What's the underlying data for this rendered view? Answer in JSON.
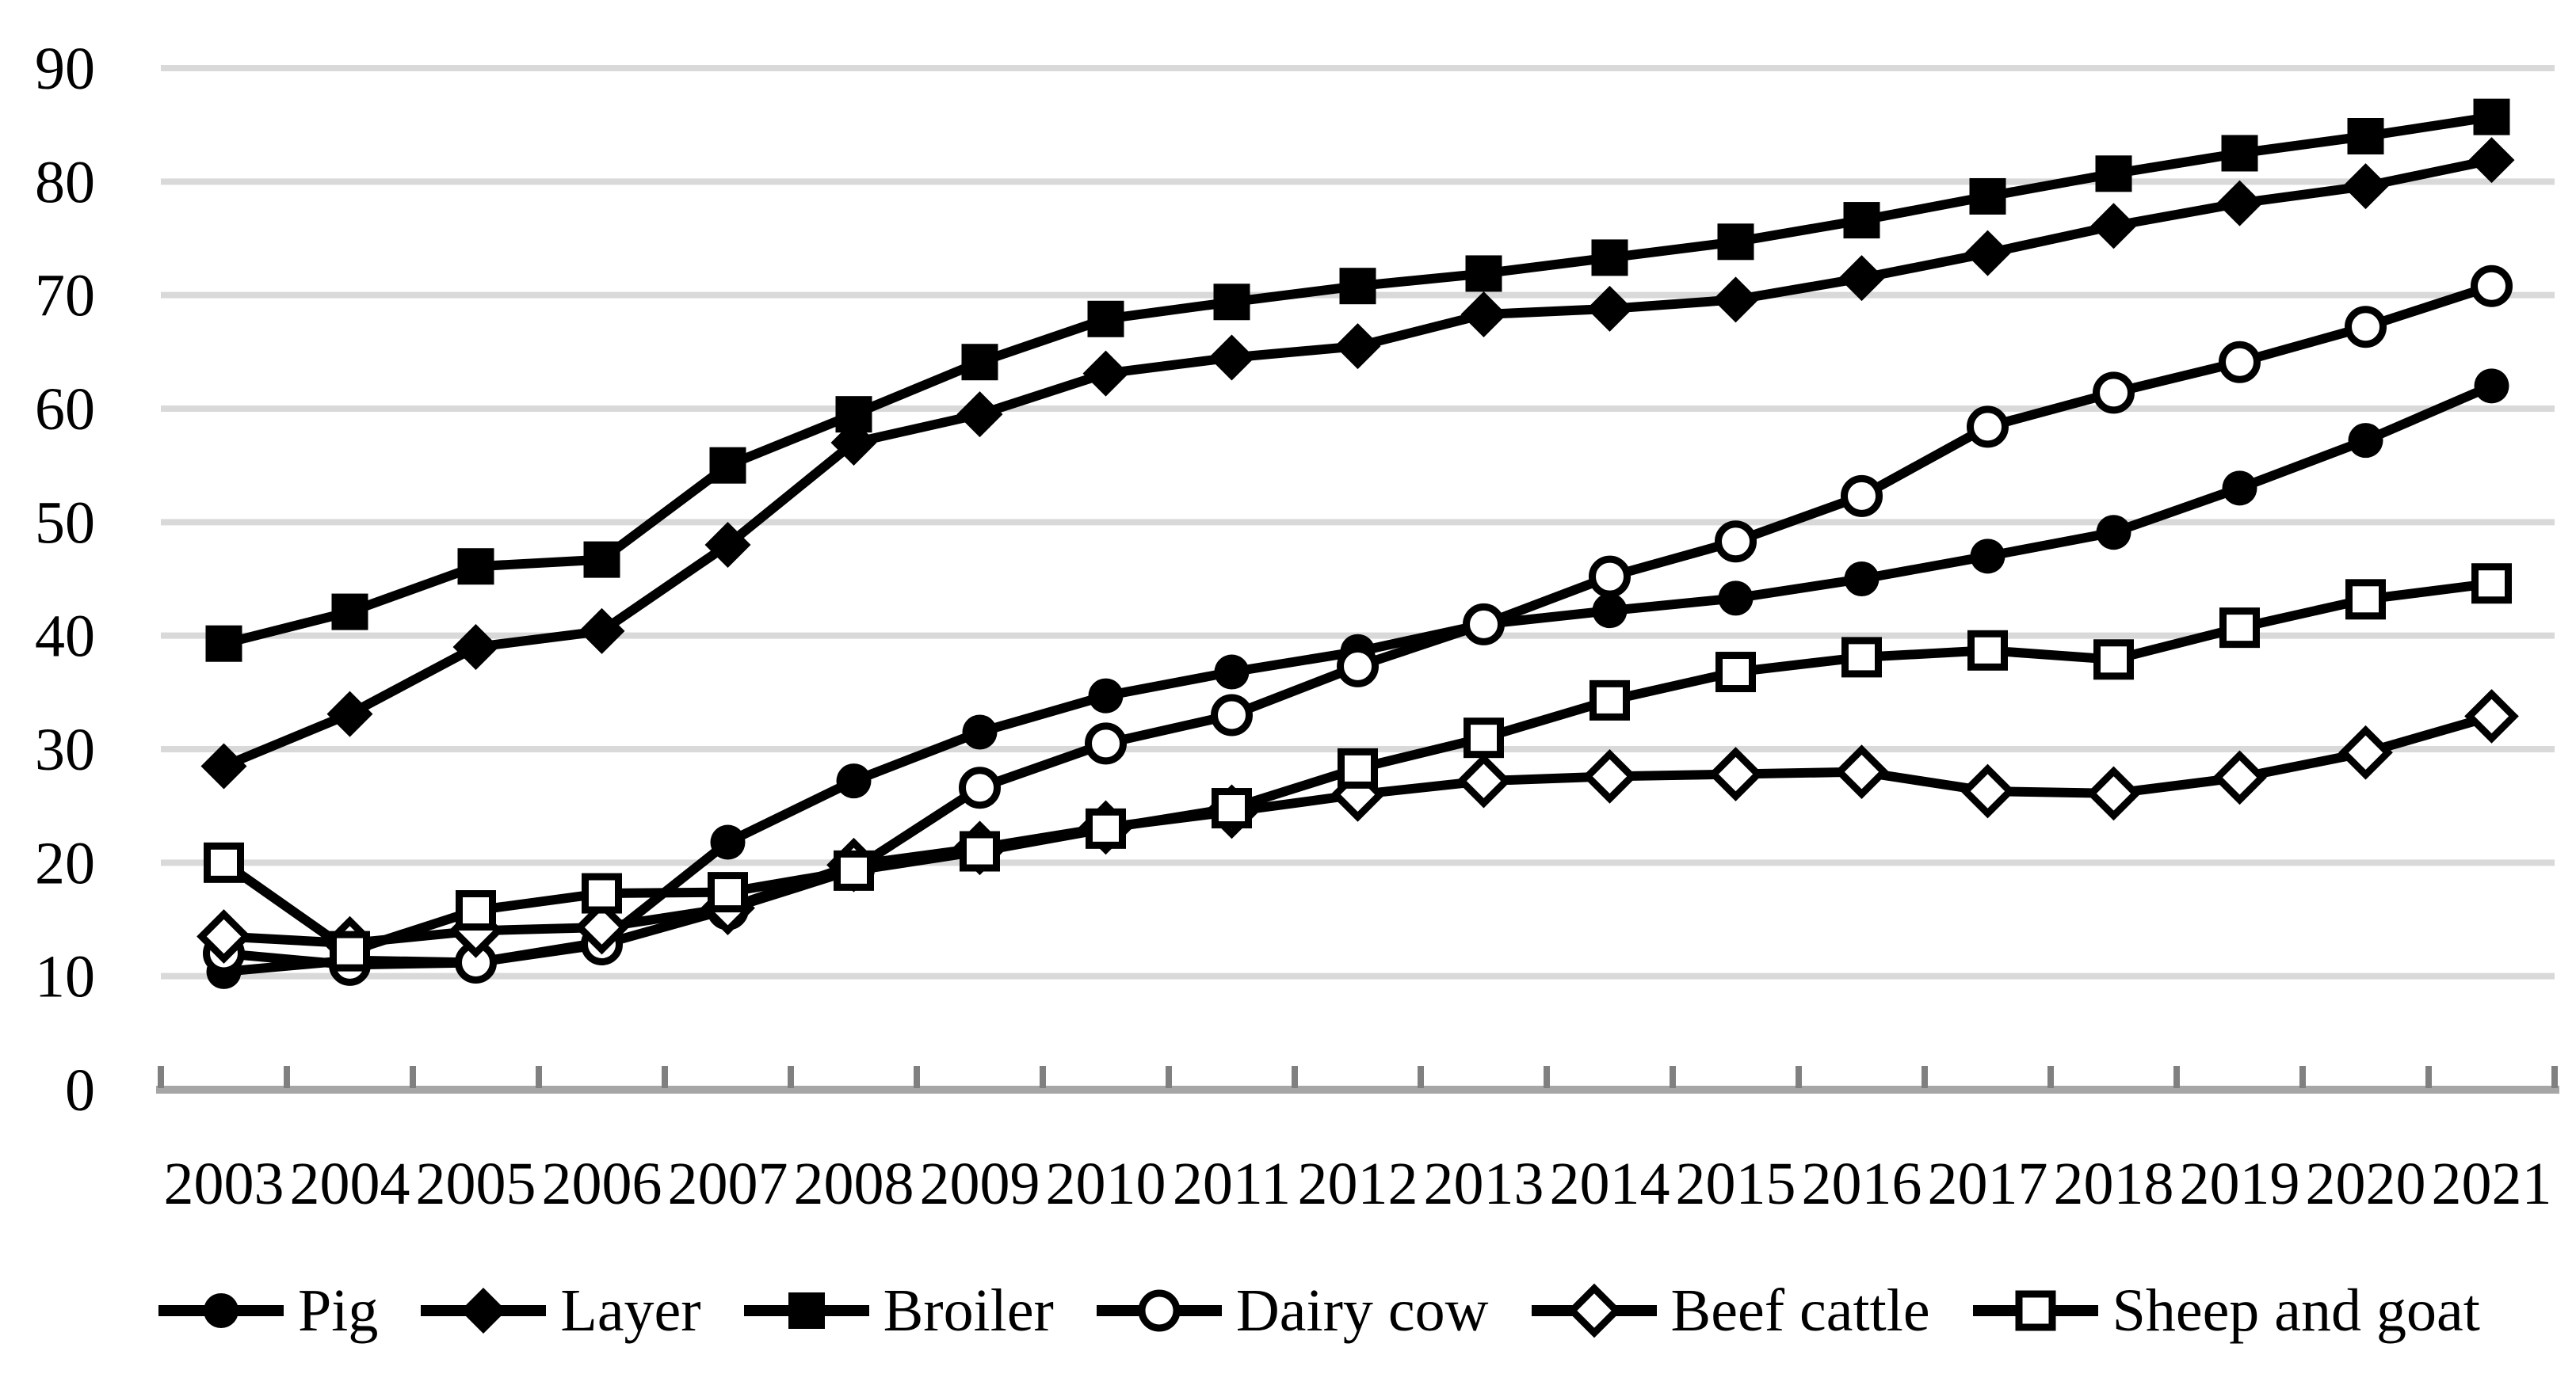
{
  "chart_data": {
    "type": "line",
    "title": "",
    "xlabel": "",
    "ylabel": "",
    "xticks": [
      "2003",
      "2004",
      "2005",
      "2006",
      "2007",
      "2008",
      "2009",
      "2010",
      "2011",
      "2012",
      "2013",
      "2014",
      "2015",
      "2016",
      "2017",
      "2018",
      "2019",
      "2020",
      "2021"
    ],
    "yticks": [
      "0",
      "10",
      "20",
      "30",
      "40",
      "50",
      "60",
      "70",
      "80",
      "90"
    ],
    "ylim": [
      0,
      90
    ],
    "ytick_step": 10,
    "grid": "horizontal",
    "legend_position": "bottom",
    "series": [
      {
        "name": "Pig",
        "marker": "circle",
        "fill": "filled",
        "values": [
          10.4,
          11.4,
          11.2,
          13.0,
          21.8,
          27.2,
          31.5,
          34.7,
          36.8,
          38.6,
          41.0,
          42.2,
          43.3,
          45.0,
          47.0,
          49.1,
          53.0,
          57.2,
          62.0
        ]
      },
      {
        "name": "Layer",
        "marker": "diamond",
        "fill": "filled",
        "values": [
          28.5,
          33.1,
          39.0,
          40.4,
          48.0,
          57.0,
          59.5,
          63.1,
          64.5,
          65.5,
          68.3,
          68.8,
          69.6,
          71.5,
          73.7,
          76.1,
          78.1,
          79.6,
          81.9
        ]
      },
      {
        "name": "Broiler",
        "marker": "square",
        "fill": "filled",
        "values": [
          39.3,
          42.1,
          46.1,
          46.7,
          55.0,
          59.5,
          64.1,
          67.9,
          69.4,
          70.8,
          71.9,
          73.3,
          74.7,
          76.6,
          78.7,
          80.7,
          82.5,
          84.0,
          85.7
        ]
      },
      {
        "name": "Dairy cow",
        "marker": "circle",
        "fill": "open",
        "values": [
          12.0,
          11.0,
          11.2,
          12.8,
          15.9,
          19.4,
          26.6,
          30.5,
          33.0,
          37.3,
          41.0,
          45.2,
          48.3,
          52.3,
          58.4,
          61.4,
          64.1,
          67.2,
          70.8
        ]
      },
      {
        "name": "Beef cattle",
        "marker": "diamond",
        "fill": "open",
        "values": [
          13.5,
          12.9,
          14.0,
          14.3,
          16.0,
          19.8,
          21.3,
          23.1,
          24.5,
          26.0,
          27.2,
          27.6,
          27.8,
          28.0,
          26.3,
          26.1,
          27.5,
          29.7,
          32.9
        ]
      },
      {
        "name": "Sheep and goat",
        "marker": "square",
        "fill": "open",
        "values": [
          20.0,
          12.2,
          15.8,
          17.3,
          17.4,
          19.3,
          21.0,
          23.0,
          24.8,
          28.3,
          31.0,
          34.3,
          36.8,
          38.1,
          38.7,
          37.9,
          40.7,
          43.2,
          44.6
        ]
      }
    ],
    "colors": {
      "series": "#000000",
      "marker_open_fill": "#ffffff",
      "gridline": "#d9d9d9",
      "axis_line": "#a6a6a6",
      "tick": "#808080",
      "text": "#000000",
      "background": "#ffffff"
    }
  }
}
